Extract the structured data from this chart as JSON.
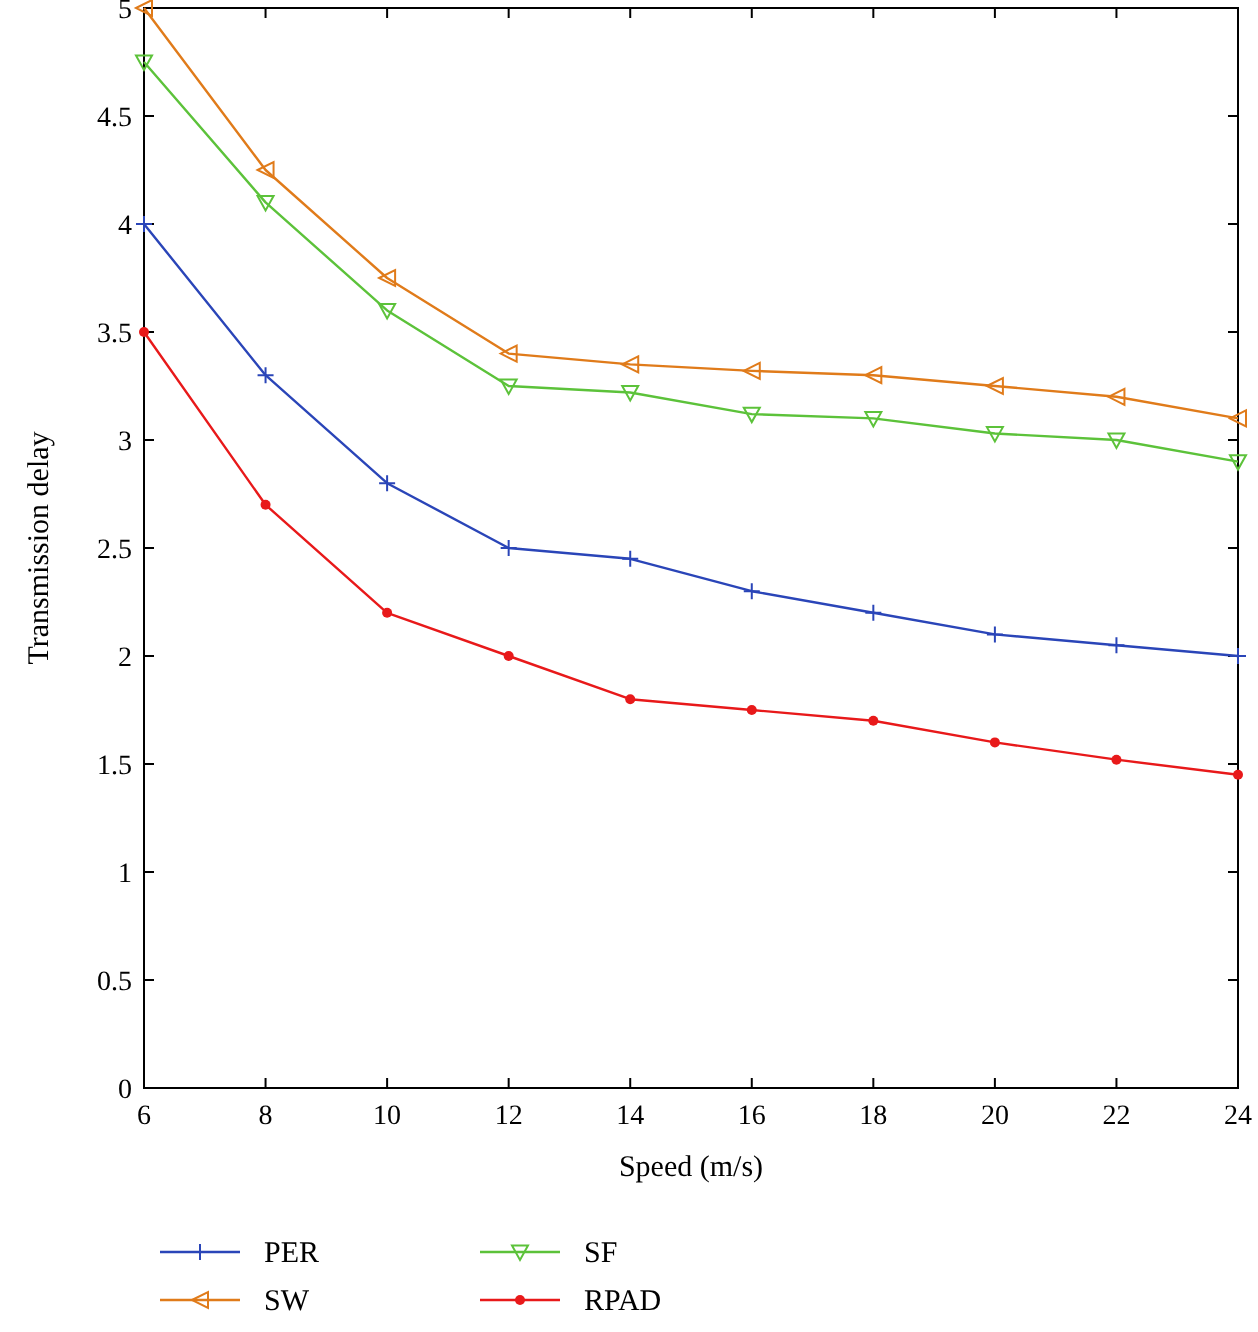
{
  "chart_data": {
    "type": "line",
    "xlabel": "Speed (m/s)",
    "ylabel": "Transmission delay",
    "x": [
      6,
      8,
      10,
      12,
      14,
      16,
      18,
      20,
      22,
      24
    ],
    "xlim": [
      6,
      24
    ],
    "xticks": [
      6,
      8,
      10,
      12,
      14,
      16,
      18,
      20,
      22,
      24
    ],
    "ylim": [
      0,
      5
    ],
    "yticks": [
      0,
      0.5,
      1,
      1.5,
      2,
      2.5,
      3,
      3.5,
      4,
      4.5,
      5
    ],
    "legend": "bottom",
    "line_style": "solid",
    "series": [
      {
        "name": "PER",
        "color": "#2a45b8",
        "marker": "cross",
        "values": [
          4.0,
          3.3,
          2.8,
          2.5,
          2.45,
          2.3,
          2.2,
          2.1,
          2.05,
          2.0
        ]
      },
      {
        "name": "SW",
        "color": "#e07b1a",
        "marker": "triangle",
        "values": [
          5.0,
          4.25,
          3.75,
          3.4,
          3.35,
          3.32,
          3.3,
          3.25,
          3.2,
          3.1
        ]
      },
      {
        "name": "SF",
        "color": "#5cc23a",
        "marker": "triangle",
        "values": [
          4.75,
          4.1,
          3.6,
          3.25,
          3.22,
          3.12,
          3.1,
          3.03,
          3.0,
          2.9
        ]
      },
      {
        "name": "RPAD",
        "color": "#e8191a",
        "marker": "circle",
        "values": [
          3.5,
          2.7,
          2.2,
          2.0,
          1.8,
          1.75,
          1.7,
          1.6,
          1.52,
          1.45
        ]
      }
    ]
  }
}
